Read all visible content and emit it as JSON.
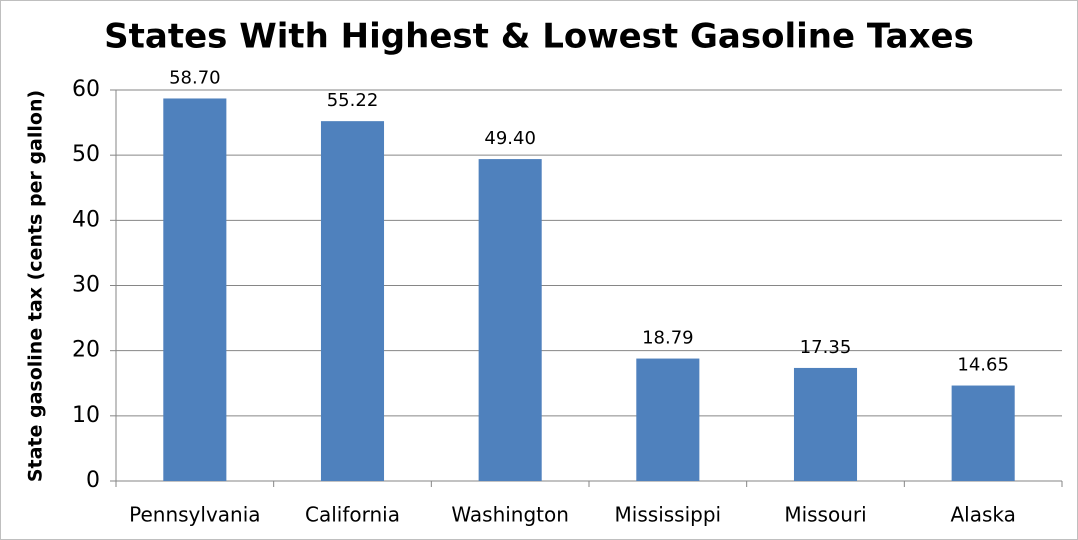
{
  "chart_data": {
    "type": "bar",
    "title": "States With Highest & Lowest Gasoline Taxes",
    "y_label": "State gasoline tax (cents per gallon)",
    "categories": [
      "Pennsylvania",
      "California",
      "Washington",
      "Mississippi",
      "Missouri",
      "Alaska"
    ],
    "values": [
      58.7,
      55.22,
      49.4,
      18.79,
      17.35,
      14.65
    ],
    "value_labels": [
      "58.70",
      "55.22",
      "49.40",
      "18.79",
      "17.35",
      "14.65"
    ],
    "color": "#4f81bd",
    "ylim": [
      0,
      60
    ],
    "yticks": [
      0,
      10,
      20,
      30,
      40,
      50,
      60
    ],
    "grid": true
  }
}
